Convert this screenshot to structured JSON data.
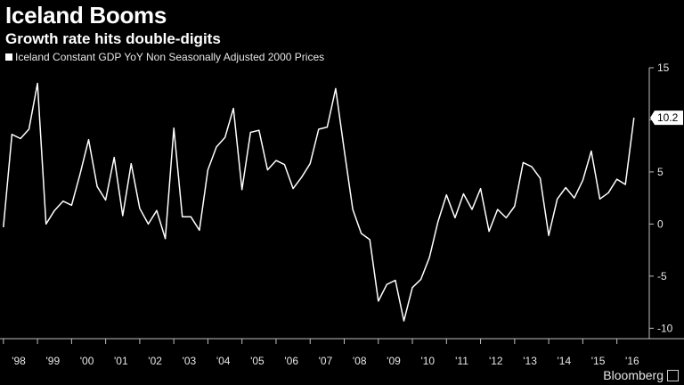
{
  "header": {
    "title": "Iceland Booms",
    "subtitle": "Growth rate hits double-digits"
  },
  "legend": {
    "label": "Iceland Constant GDP YoY Non Seasonally Adjusted 2000 Prices",
    "color": "#ffffff"
  },
  "footer": {
    "credit": "Bloomberg",
    "icon": "bloomberg-logo-icon"
  },
  "chart_data": {
    "type": "line",
    "title": "Iceland Booms",
    "subtitle": "Growth rate hits double-digits",
    "xlabel": "",
    "ylabel": "",
    "ylim": [
      -11,
      15
    ],
    "yticks": [
      15,
      10,
      5,
      0,
      -5,
      -10
    ],
    "ytick_labels": [
      "15",
      "10",
      "5",
      "0",
      "-5",
      "-10"
    ],
    "y_axis_side": "right",
    "xtick_labels": [
      "'98",
      "'99",
      "'00",
      "'01",
      "'02",
      "'03",
      "'04",
      "'05",
      "'06",
      "'07",
      "'08",
      "'09",
      "'10",
      "'11",
      "'12",
      "'13",
      "'14",
      "'15",
      "'16"
    ],
    "xlim": [
      1997.9,
      2016.95
    ],
    "grid": false,
    "legend_position": "top-left",
    "last_value_label": "10.2",
    "series": [
      {
        "name": "Iceland Constant GDP YoY Non Seasonally Adjusted 2000 Prices",
        "color": "#ffffff",
        "points": [
          [
            1998.0,
            -0.3
          ],
          [
            1998.25,
            8.6
          ],
          [
            1998.5,
            8.2
          ],
          [
            1998.75,
            9.1
          ],
          [
            1999.0,
            13.5
          ],
          [
            1999.25,
            0.0
          ],
          [
            1999.5,
            1.3
          ],
          [
            1999.75,
            2.2
          ],
          [
            2000.0,
            1.8
          ],
          [
            2000.25,
            4.8
          ],
          [
            2000.5,
            8.1
          ],
          [
            2000.75,
            3.6
          ],
          [
            2001.0,
            2.3
          ],
          [
            2001.25,
            6.4
          ],
          [
            2001.5,
            0.8
          ],
          [
            2001.75,
            5.8
          ],
          [
            2002.0,
            1.5
          ],
          [
            2002.25,
            0.0
          ],
          [
            2002.5,
            1.3
          ],
          [
            2002.75,
            -1.4
          ],
          [
            2003.0,
            9.2
          ],
          [
            2003.25,
            0.7
          ],
          [
            2003.5,
            0.7
          ],
          [
            2003.75,
            -0.6
          ],
          [
            2004.0,
            5.2
          ],
          [
            2004.25,
            7.4
          ],
          [
            2004.5,
            8.3
          ],
          [
            2004.75,
            11.1
          ],
          [
            2005.0,
            3.3
          ],
          [
            2005.25,
            8.8
          ],
          [
            2005.5,
            9.0
          ],
          [
            2005.75,
            5.2
          ],
          [
            2006.0,
            6.1
          ],
          [
            2006.25,
            5.7
          ],
          [
            2006.5,
            3.4
          ],
          [
            2006.75,
            4.5
          ],
          [
            2007.0,
            5.8
          ],
          [
            2007.25,
            9.1
          ],
          [
            2007.5,
            9.3
          ],
          [
            2007.75,
            13.0
          ],
          [
            2008.0,
            7.1
          ],
          [
            2008.25,
            1.4
          ],
          [
            2008.5,
            -0.9
          ],
          [
            2008.75,
            -1.5
          ],
          [
            2009.0,
            -7.4
          ],
          [
            2009.25,
            -5.8
          ],
          [
            2009.5,
            -5.4
          ],
          [
            2009.75,
            -9.3
          ],
          [
            2010.0,
            -6.1
          ],
          [
            2010.25,
            -5.3
          ],
          [
            2010.5,
            -3.2
          ],
          [
            2010.75,
            0.2
          ],
          [
            2011.0,
            2.8
          ],
          [
            2011.25,
            0.6
          ],
          [
            2011.5,
            2.9
          ],
          [
            2011.75,
            1.4
          ],
          [
            2012.0,
            3.4
          ],
          [
            2012.25,
            -0.7
          ],
          [
            2012.5,
            1.4
          ],
          [
            2012.75,
            0.6
          ],
          [
            2013.0,
            1.7
          ],
          [
            2013.25,
            5.9
          ],
          [
            2013.5,
            5.5
          ],
          [
            2013.75,
            4.4
          ],
          [
            2014.0,
            -1.1
          ],
          [
            2014.25,
            2.4
          ],
          [
            2014.5,
            3.5
          ],
          [
            2014.75,
            2.5
          ],
          [
            2015.0,
            4.2
          ],
          [
            2015.25,
            7.0
          ],
          [
            2015.5,
            2.4
          ],
          [
            2015.75,
            3.0
          ],
          [
            2016.0,
            4.3
          ],
          [
            2016.25,
            3.8
          ],
          [
            2016.5,
            10.2
          ]
        ]
      }
    ]
  }
}
